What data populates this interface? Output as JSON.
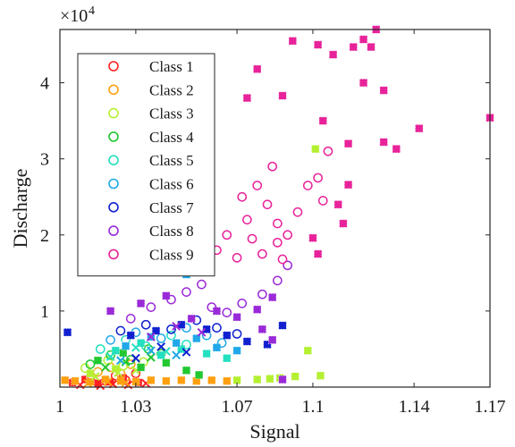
{
  "chart_data": {
    "type": "scatter",
    "xlabel": "Signal",
    "ylabel": "Discharge",
    "xlim": [
      1,
      1.17
    ],
    "ylim": [
      0,
      47000
    ],
    "y_exponent_label": "×10",
    "y_exponent_power": "4",
    "x_ticks": [
      {
        "value": 1,
        "label": "1"
      },
      {
        "value": 1.03,
        "label": "1.03"
      },
      {
        "value": 1.07,
        "label": "1.07"
      },
      {
        "value": 1.1,
        "label": "1.1"
      },
      {
        "value": 1.14,
        "label": "1.14"
      },
      {
        "value": 1.17,
        "label": "1.17"
      }
    ],
    "y_ticks": [
      {
        "value": 10000,
        "label": "1"
      },
      {
        "value": 20000,
        "label": "2"
      },
      {
        "value": 30000,
        "label": "3"
      },
      {
        "value": 40000,
        "label": "4"
      }
    ],
    "grid": false,
    "legend_position": "top-left",
    "series": [
      {
        "name": "Class 1",
        "color": "#ff2020",
        "circles": [
          [
            1.012,
            1200
          ],
          [
            1.018,
            800
          ],
          [
            1.022,
            1500
          ],
          [
            1.026,
            900
          ],
          [
            1.03,
            1800
          ]
        ],
        "squares": [
          [
            1.005,
            600
          ],
          [
            1.01,
            1000
          ],
          [
            1.015,
            500
          ],
          [
            1.02,
            700
          ],
          [
            1.025,
            1200
          ],
          [
            1.031,
            600
          ]
        ],
        "crosses": [
          [
            1.008,
            300
          ],
          [
            1.016,
            200
          ],
          [
            1.021,
            400
          ],
          [
            1.027,
            300
          ],
          [
            1.034,
            500
          ]
        ]
      },
      {
        "name": "Class 2",
        "color": "#ffa010",
        "circles": [
          [
            1.015,
            2000
          ],
          [
            1.02,
            2600
          ],
          [
            1.024,
            1800
          ],
          [
            1.028,
            3000
          ]
        ],
        "squares": [
          [
            1.002,
            900
          ],
          [
            1.006,
            800
          ],
          [
            1.012,
            700
          ],
          [
            1.018,
            1000
          ],
          [
            1.024,
            800
          ],
          [
            1.03,
            700
          ],
          [
            1.036,
            900
          ],
          [
            1.042,
            800
          ],
          [
            1.048,
            900
          ],
          [
            1.054,
            800
          ],
          [
            1.06,
            900
          ],
          [
            1.066,
            800
          ]
        ],
        "crosses": [
          [
            1.011,
            500
          ],
          [
            1.019,
            700
          ],
          [
            1.026,
            600
          ]
        ]
      },
      {
        "name": "Class 3",
        "color": "#b4f032",
        "circles": [
          [
            1.01,
            2500
          ],
          [
            1.019,
            3500
          ],
          [
            1.025,
            2800
          ],
          [
            1.033,
            3300
          ]
        ],
        "squares": [
          [
            1.012,
            1800
          ],
          [
            1.022,
            2400
          ],
          [
            1.07,
            900
          ],
          [
            1.078,
            1000
          ],
          [
            1.083,
            1100
          ],
          [
            1.087,
            1200
          ],
          [
            1.093,
            1400
          ],
          [
            1.103,
            1500
          ],
          [
            1.098,
            4800
          ],
          [
            1.101,
            31300
          ]
        ],
        "crosses": [
          [
            1.014,
            1400
          ],
          [
            1.023,
            1900
          ],
          [
            1.03,
            2200
          ]
        ]
      },
      {
        "name": "Class 4",
        "color": "#22c830",
        "circles": [
          [
            1.012,
            3000
          ],
          [
            1.02,
            4200
          ],
          [
            1.028,
            3600
          ],
          [
            1.035,
            5000
          ],
          [
            1.04,
            4400
          ]
        ],
        "squares": [
          [
            1.015,
            3500
          ],
          [
            1.025,
            4500
          ],
          [
            1.032,
            2600
          ],
          [
            1.042,
            3200
          ],
          [
            1.05,
            2200
          ],
          [
            1.055,
            1600
          ]
        ],
        "crosses": [
          [
            1.018,
            2600
          ],
          [
            1.026,
            3300
          ],
          [
            1.036,
            3900
          ]
        ]
      },
      {
        "name": "Class 5",
        "color": "#22e0c0",
        "circles": [
          [
            1.016,
            5000
          ],
          [
            1.026,
            6200
          ],
          [
            1.034,
            5400
          ],
          [
            1.044,
            6800
          ],
          [
            1.05,
            5600
          ]
        ],
        "squares": [
          [
            1.022,
            4800
          ],
          [
            1.032,
            5800
          ],
          [
            1.04,
            4200
          ],
          [
            1.048,
            5000
          ],
          [
            1.058,
            4400
          ],
          [
            1.066,
            3800
          ],
          [
            1.035,
            15200
          ]
        ],
        "crosses": [
          [
            1.02,
            4000
          ],
          [
            1.03,
            5200
          ],
          [
            1.042,
            4700
          ]
        ]
      },
      {
        "name": "Class 6",
        "color": "#20a8e8",
        "circles": [
          [
            1.02,
            6200
          ],
          [
            1.03,
            7200
          ],
          [
            1.04,
            6400
          ],
          [
            1.05,
            7800
          ],
          [
            1.058,
            6800
          ],
          [
            1.064,
            5800
          ]
        ],
        "squares": [
          [
            1.026,
            5400
          ],
          [
            1.036,
            6600
          ],
          [
            1.046,
            5800
          ],
          [
            1.054,
            6400
          ],
          [
            1.062,
            5200
          ],
          [
            1.07,
            4800
          ],
          [
            1.04,
            16200
          ],
          [
            1.05,
            14800
          ]
        ],
        "crosses": [
          [
            1.024,
            3500
          ],
          [
            1.036,
            4800
          ],
          [
            1.046,
            4200
          ]
        ]
      },
      {
        "name": "Class 7",
        "color": "#1020d0",
        "circles": [
          [
            1.024,
            7400
          ],
          [
            1.034,
            8200
          ],
          [
            1.044,
            7600
          ],
          [
            1.054,
            8800
          ],
          [
            1.062,
            7800
          ],
          [
            1.07,
            7000
          ]
        ],
        "squares": [
          [
            1.003,
            7200
          ],
          [
            1.028,
            6800
          ],
          [
            1.038,
            7400
          ],
          [
            1.048,
            8200
          ],
          [
            1.058,
            7600
          ],
          [
            1.066,
            6800
          ],
          [
            1.074,
            6000
          ],
          [
            1.082,
            5600
          ],
          [
            1.088,
            8100
          ]
        ],
        "crosses": [
          [
            1.03,
            3800
          ],
          [
            1.04,
            5300
          ],
          [
            1.05,
            4600
          ]
        ]
      },
      {
        "name": "Class 8",
        "color": "#9a2ad8",
        "circles": [
          [
            1.028,
            9000
          ],
          [
            1.036,
            10500
          ],
          [
            1.044,
            11500
          ],
          [
            1.05,
            12500
          ],
          [
            1.056,
            13500
          ],
          [
            1.06,
            10500
          ],
          [
            1.066,
            9800
          ],
          [
            1.072,
            11000
          ],
          [
            1.08,
            12200
          ],
          [
            1.086,
            14000
          ],
          [
            1.09,
            16000
          ]
        ],
        "squares": [
          [
            1.02,
            10000
          ],
          [
            1.032,
            11000
          ],
          [
            1.042,
            12000
          ],
          [
            1.052,
            9000
          ],
          [
            1.062,
            10000
          ],
          [
            1.07,
            9200
          ],
          [
            1.078,
            10200
          ],
          [
            1.084,
            11800
          ],
          [
            1.088,
            1000
          ],
          [
            1.084,
            6200
          ],
          [
            1.08,
            7600
          ]
        ],
        "crosses": [
          [
            1.036,
            6600
          ],
          [
            1.046,
            8000
          ],
          [
            1.056,
            7200
          ]
        ]
      },
      {
        "name": "Class 9",
        "color": "#e8239a",
        "circles": [
          [
            1.058,
            16000
          ],
          [
            1.062,
            18000
          ],
          [
            1.066,
            20000
          ],
          [
            1.07,
            17000
          ],
          [
            1.074,
            22000
          ],
          [
            1.076,
            19500
          ],
          [
            1.078,
            26500
          ],
          [
            1.082,
            24000
          ],
          [
            1.084,
            29000
          ],
          [
            1.086,
            21500
          ],
          [
            1.088,
            16800
          ],
          [
            1.09,
            20000
          ],
          [
            1.094,
            23000
          ],
          [
            1.098,
            26500
          ],
          [
            1.102,
            27500
          ],
          [
            1.104,
            24500
          ],
          [
            1.106,
            31000
          ],
          [
            1.072,
            25000
          ],
          [
            1.08,
            17500
          ],
          [
            1.086,
            19000
          ]
        ],
        "squares": [
          [
            1.074,
            38000
          ],
          [
            1.078,
            41800
          ],
          [
            1.088,
            38300
          ],
          [
            1.092,
            45500
          ],
          [
            1.102,
            45000
          ],
          [
            1.108,
            43700
          ],
          [
            1.1,
            19600
          ],
          [
            1.102,
            17500
          ],
          [
            1.104,
            35000
          ],
          [
            1.11,
            24000
          ],
          [
            1.114,
            32000
          ],
          [
            1.114,
            26600
          ],
          [
            1.112,
            21500
          ],
          [
            1.116,
            44700
          ],
          [
            1.12,
            45700
          ],
          [
            1.123,
            44700
          ],
          [
            1.125,
            47000
          ],
          [
            1.128,
            39000
          ],
          [
            1.128,
            32200
          ],
          [
            1.133,
            31300
          ],
          [
            1.142,
            34000
          ],
          [
            1.17,
            35400
          ],
          [
            1.12,
            40000
          ]
        ],
        "crosses": []
      }
    ]
  }
}
